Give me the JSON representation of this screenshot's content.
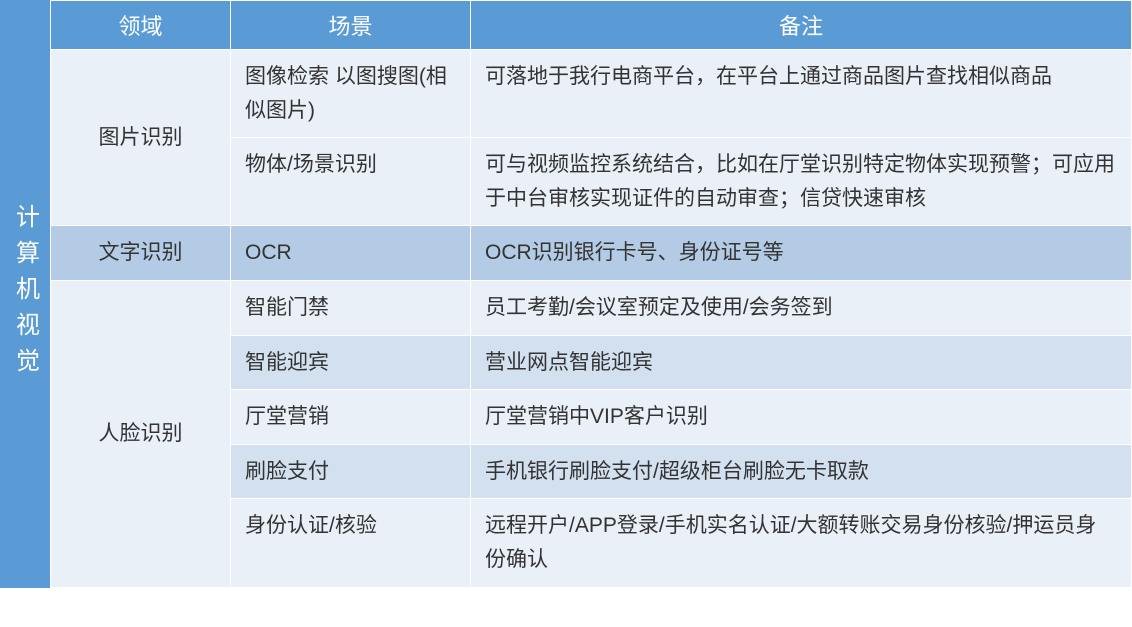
{
  "colors": {
    "category_bg": "#5b9bd5",
    "header_bg": "#5b9bd5",
    "row_light": "#eaf0f8",
    "row_mid": "#d3e0ef",
    "row_dark": "#b4cbe6",
    "text_header": "#ffffff",
    "text_body": "#333333"
  },
  "layout": {
    "total_width": 1132,
    "total_height": 627,
    "category_col_width": 50,
    "domain_col_width": 180,
    "scene_col_width": 240,
    "font_size_body": 21,
    "font_size_header": 22,
    "font_size_category": 24
  },
  "category": "计算机视觉",
  "headers": {
    "domain": "领域",
    "scene": "场景",
    "remark": "备注"
  },
  "rows": [
    {
      "domain": "图片识别",
      "domain_rowspan": 2,
      "bg": "#eaf0f8",
      "scene": "图像检索 以图搜图(相似图片)",
      "remark": "可落地于我行电商平台，在平台上通过商品图片查找相似商品"
    },
    {
      "bg": "#eaf0f8",
      "scene": "物体/场景识别",
      "remark": "可与视频监控系统结合，比如在厅堂识别特定物体实现预警；可应用于中台审核实现证件的自动审查；信贷快速审核"
    },
    {
      "domain": "文字识别",
      "domain_rowspan": 1,
      "bg": "#b4cbe6",
      "scene": "OCR",
      "remark": "OCR识别银行卡号、身份证号等"
    },
    {
      "domain": "人脸识别",
      "domain_rowspan": 5,
      "bg": "#eaf0f8",
      "scene": "智能门禁",
      "remark": "员工考勤/会议室预定及使用/会务签到"
    },
    {
      "bg": "#d3e0ef",
      "scene": "智能迎宾",
      "remark": "营业网点智能迎宾"
    },
    {
      "bg": "#eaf0f8",
      "scene": "厅堂营销",
      "remark": "厅堂营销中VIP客户识别"
    },
    {
      "bg": "#d3e0ef",
      "scene": "刷脸支付",
      "remark": "手机银行刷脸支付/超级柜台刷脸无卡取款"
    },
    {
      "bg": "#eaf0f8",
      "scene": "身份认证/核验",
      "remark": "远程开户/APP登录/手机实名认证/大额转账交易身份核验/押运员身份确认"
    }
  ]
}
